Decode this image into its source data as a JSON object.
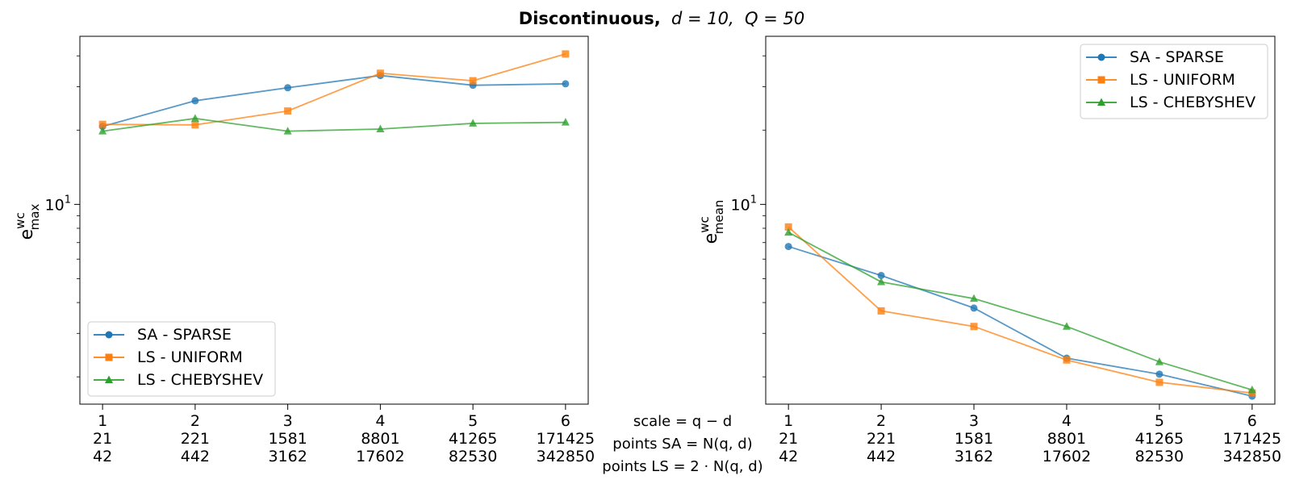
{
  "figure": {
    "title_prefix": "Discontinuous,",
    "title_d": "d = 10,",
    "title_q": "Q = 50"
  },
  "x_caption": {
    "line1": "scale = q − d",
    "line2": "points SA = N(q, d)",
    "line3": "points LS = 2 · N(q, d)"
  },
  "colors": {
    "sa_sparse": "#1f77b4",
    "ls_uniform": "#ff7f0e",
    "ls_chebyshev": "#2ca02c"
  },
  "chart_data": [
    {
      "type": "line",
      "panel": "left",
      "ylabel": "e_max^wc",
      "ylabel_base": "e",
      "ylabel_sup": "wc",
      "ylabel_sub": "max",
      "yscale": "log",
      "ylim": [
        1.55,
        48
      ],
      "y_tick_labels": [
        {
          "value": 10,
          "base": "10",
          "exp": "1"
        }
      ],
      "legend_position": "lower-left",
      "x": [
        1,
        2,
        3,
        4,
        5,
        6
      ],
      "x_tick_rows": [
        [
          "1",
          "2",
          "3",
          "4",
          "5",
          "6"
        ],
        [
          "21",
          "221",
          "1581",
          "8801",
          "41265",
          "171425"
        ],
        [
          "42",
          "442",
          "3162",
          "17602",
          "82530",
          "342850"
        ]
      ],
      "series": [
        {
          "name": "SA - SPARSE",
          "marker": "circle",
          "color": "#1f77b4",
          "values": [
            20.7,
            26.3,
            29.7,
            33.3,
            30.4,
            30.8
          ]
        },
        {
          "name": "LS - UNIFORM",
          "marker": "square",
          "color": "#ff7f0e",
          "values": [
            21.1,
            21.0,
            23.9,
            34.0,
            31.7,
            40.7
          ]
        },
        {
          "name": "LS - CHEBYSHEV",
          "marker": "triangle",
          "color": "#2ca02c",
          "values": [
            19.8,
            22.3,
            19.8,
            20.2,
            21.3,
            21.5
          ]
        }
      ]
    },
    {
      "type": "line",
      "panel": "right",
      "ylabel": "e_mean^wc",
      "ylabel_base": "e",
      "ylabel_sup": "wc",
      "ylabel_sub": "mean",
      "yscale": "log",
      "ylim": [
        1.55,
        48
      ],
      "y_tick_labels": [
        {
          "value": 10,
          "base": "10",
          "exp": "1"
        }
      ],
      "legend_position": "upper-right",
      "x": [
        1,
        2,
        3,
        4,
        5,
        6
      ],
      "x_tick_rows": [
        [
          "1",
          "2",
          "3",
          "4",
          "5",
          "6"
        ],
        [
          "21",
          "221",
          "1581",
          "8801",
          "41265",
          "171425"
        ],
        [
          "42",
          "442",
          "3162",
          "17602",
          "82530",
          "342850"
        ]
      ],
      "series": [
        {
          "name": "SA - SPARSE",
          "marker": "circle",
          "color": "#1f77b4",
          "values": [
            6.75,
            5.15,
            3.8,
            2.38,
            2.05,
            1.67
          ]
        },
        {
          "name": "LS - UNIFORM",
          "marker": "square",
          "color": "#ff7f0e",
          "values": [
            8.1,
            3.7,
            3.2,
            2.34,
            1.9,
            1.72
          ]
        },
        {
          "name": "LS - CHEBYSHEV",
          "marker": "triangle",
          "color": "#2ca02c",
          "values": [
            7.7,
            4.85,
            4.15,
            3.2,
            2.3,
            1.77
          ]
        }
      ]
    }
  ]
}
